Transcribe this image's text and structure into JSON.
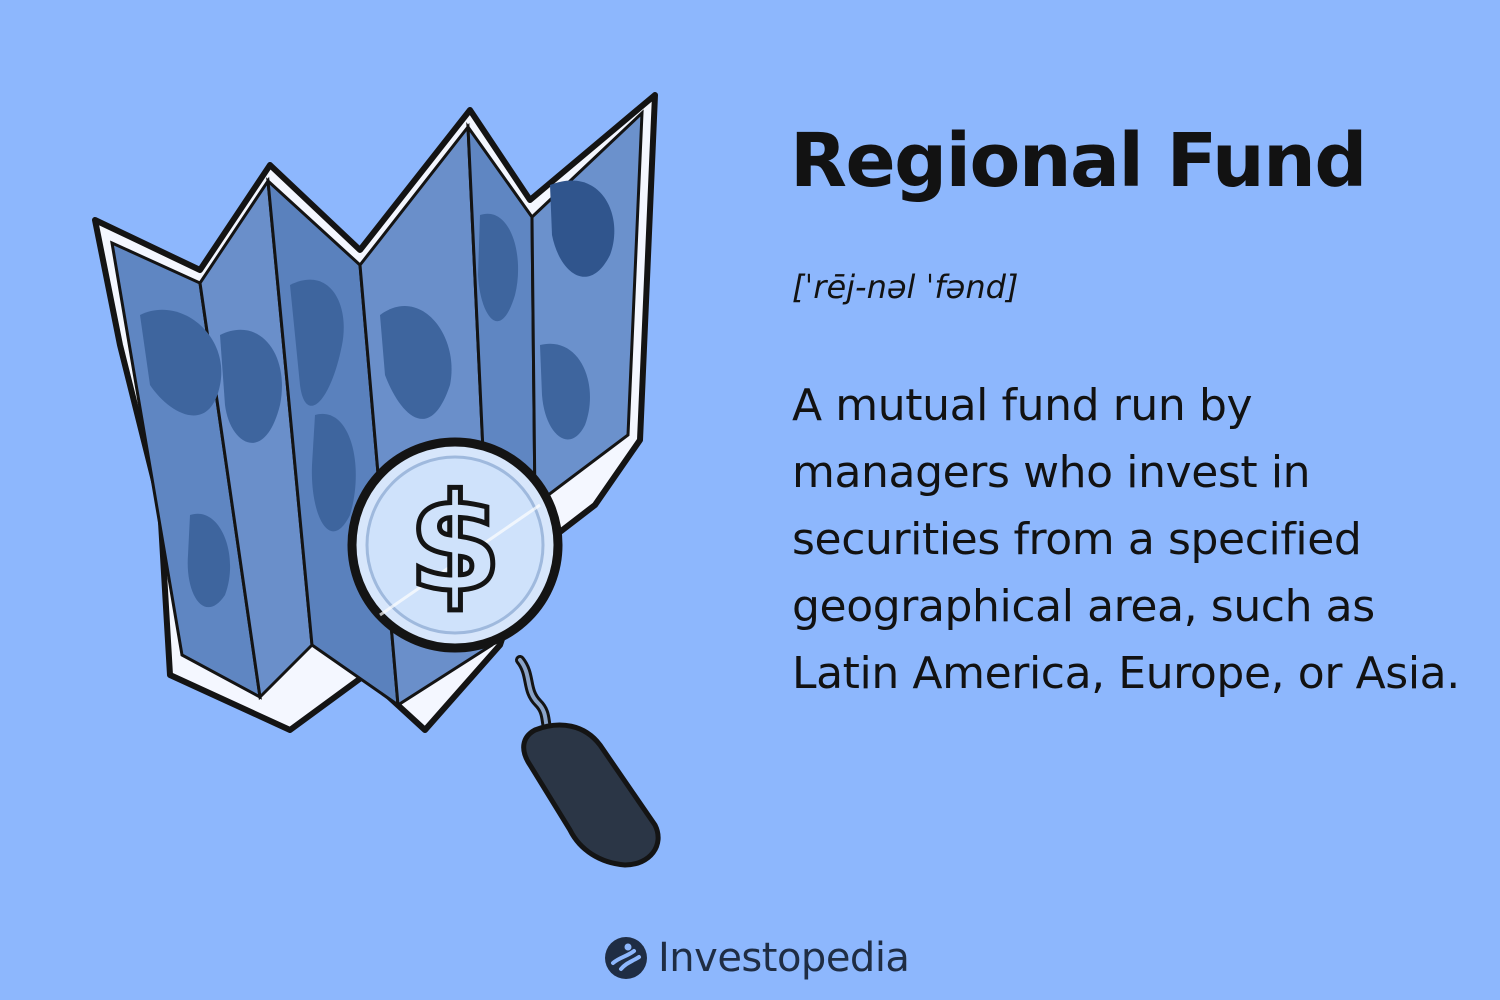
{
  "title": "Regional Fund",
  "pronunciation": "[ˈrēj-nəl ˈfənd]",
  "definition": "A mutual fund run by managers who invest in securities from a specified geographical area, such as Latin America, Europe, or Asia.",
  "brand": {
    "name": "Investopedia",
    "logo_icon": "investopedia-logo-icon"
  },
  "illustration": {
    "subject": "folded-world-map-with-magnifying-glass",
    "lens_symbol": "$"
  },
  "colors": {
    "background": "#8db7fd",
    "text": "#121212",
    "map_panel": "#5f86c2",
    "map_land": "#3e659e",
    "outline": "#141414",
    "lens": "#cfe2fb",
    "handle": "#2b3646"
  }
}
